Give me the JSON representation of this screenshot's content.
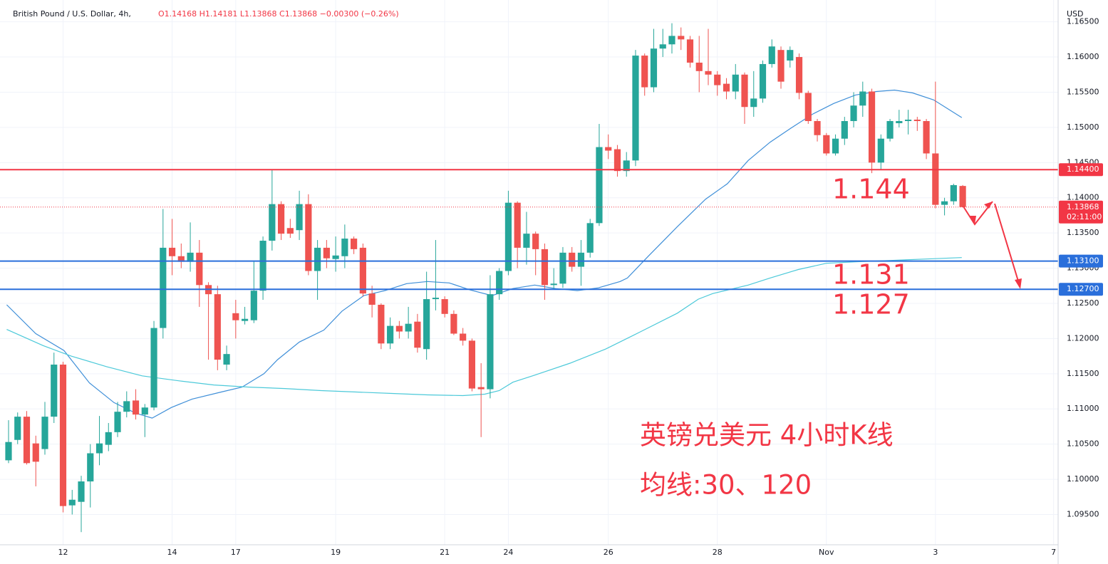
{
  "chart_data": {
    "type": "candlestick",
    "title": "British Pound / U.S. Dollar, 4h,",
    "legend_text": "O1.14168 H1.14181 L1.13868 C1.13868 −0.00300 (−0.26%)",
    "currency": "USD",
    "up_color": "#26a69a",
    "down_color": "#ef5350",
    "open": [
      1.1027,
      1.1056,
      1.1089,
      1.1051,
      1.1043,
      1.1089,
      1.1163,
      1.0963,
      1.0968,
      1.0997,
      1.1037,
      1.1049,
      1.1067,
      1.1096,
      1.1112,
      1.1092,
      1.1102,
      1.1215,
      1.1329,
      1.1317,
      1.1309,
      1.1322,
      1.1276,
      1.1263,
      1.1163,
      1.1236,
      1.1225,
      1.1226,
      1.1268,
      1.1339,
      1.1391,
      1.1357,
      1.1354,
      1.1391,
      1.1296,
      1.1329,
      1.1313,
      1.1317,
      1.1342,
      1.1329,
      1.1264,
      1.1248,
      1.1193,
      1.1218,
      1.121,
      1.1224,
      1.1185,
      1.1256,
      1.1256,
      1.1235,
      1.1207,
      1.1197,
      1.1131,
      1.1128,
      1.1263,
      1.1296,
      1.1393,
      1.1329,
      1.1349,
      1.1327,
      1.1276,
      1.1278,
      1.1322,
      1.1302,
      1.1322,
      1.1364,
      1.1472,
      1.1469,
      1.1438,
      1.1453,
      1.1602,
      1.1557,
      1.1612,
      1.1618,
      1.163,
      1.1625,
      1.1592,
      1.158,
      1.1575,
      1.1562,
      1.1551,
      1.1575,
      1.1529,
      1.1541,
      1.159,
      1.161,
      1.1595,
      1.16,
      1.1549,
      1.1509,
      1.1489,
      1.1463,
      1.1484,
      1.1509,
      1.1531,
      1.1551,
      1.145,
      1.1484,
      1.1506,
      1.1509,
      1.1511,
      1.1509,
      1.1463,
      1.139,
      1.1395,
      1.14168
    ],
    "high": [
      1.1084,
      1.1095,
      1.1097,
      1.1062,
      1.111,
      1.118,
      1.1167,
      1.0985,
      1.1005,
      1.105,
      1.109,
      1.108,
      1.111,
      1.1125,
      1.1128,
      1.1107,
      1.1225,
      1.1384,
      1.137,
      1.1335,
      1.1365,
      1.134,
      1.128,
      1.1275,
      1.119,
      1.1255,
      1.1245,
      1.131,
      1.1345,
      1.144,
      1.1395,
      1.137,
      1.141,
      1.1405,
      1.134,
      1.134,
      1.1345,
      1.1362,
      1.1345,
      1.1335,
      1.1275,
      1.125,
      1.123,
      1.1225,
      1.1245,
      1.1235,
      1.1295,
      1.134,
      1.126,
      1.124,
      1.1215,
      1.12,
      1.1165,
      1.129,
      1.13,
      1.141,
      1.1395,
      1.138,
      1.1352,
      1.1335,
      1.13,
      1.133,
      1.133,
      1.134,
      1.137,
      1.1505,
      1.149,
      1.1475,
      1.1465,
      1.161,
      1.1605,
      1.164,
      1.164,
      1.1648,
      1.1642,
      1.163,
      1.163,
      1.164,
      1.158,
      1.157,
      1.159,
      1.1578,
      1.158,
      1.1595,
      1.1625,
      1.1615,
      1.1615,
      1.1605,
      1.1552,
      1.1512,
      1.1492,
      1.149,
      1.1515,
      1.155,
      1.1565,
      1.1555,
      1.149,
      1.1512,
      1.1525,
      1.1525,
      1.1515,
      1.1512,
      1.1565,
      1.14,
      1.142,
      1.14181
    ],
    "low": [
      1.1023,
      1.105,
      1.1021,
      1.099,
      1.1035,
      1.108,
      1.0953,
      1.095,
      1.0925,
      1.096,
      1.102,
      1.104,
      1.106,
      1.1088,
      1.1085,
      1.106,
      1.1098,
      1.12,
      1.129,
      1.13,
      1.1295,
      1.1245,
      1.117,
      1.1155,
      1.1155,
      1.12,
      1.122,
      1.1222,
      1.1255,
      1.1325,
      1.134,
      1.1343,
      1.134,
      1.129,
      1.1255,
      1.13,
      1.1295,
      1.13,
      1.132,
      1.126,
      1.123,
      1.1185,
      1.1185,
      1.12,
      1.12,
      1.118,
      1.117,
      1.124,
      1.123,
      1.1205,
      1.119,
      1.1125,
      1.106,
      1.1115,
      1.1255,
      1.129,
      1.13,
      1.1305,
      1.129,
      1.1255,
      1.127,
      1.1272,
      1.1295,
      1.1275,
      1.1315,
      1.136,
      1.1455,
      1.143,
      1.143,
      1.1445,
      1.1545,
      1.155,
      1.16,
      1.1605,
      1.161,
      1.1585,
      1.155,
      1.156,
      1.1545,
      1.154,
      1.154,
      1.1505,
      1.1515,
      1.1535,
      1.1585,
      1.1555,
      1.1585,
      1.154,
      1.1505,
      1.148,
      1.146,
      1.146,
      1.1475,
      1.15,
      1.1515,
      1.1435,
      1.144,
      1.148,
      1.15,
      1.149,
      1.1495,
      1.1455,
      1.1385,
      1.1375,
      1.139,
      1.13868
    ],
    "close": [
      1.1053,
      1.1089,
      1.1023,
      1.1025,
      1.1089,
      1.1163,
      1.0962,
      1.0971,
      1.0997,
      1.1037,
      1.1051,
      1.1067,
      1.1096,
      1.1111,
      1.1092,
      1.1102,
      1.1215,
      1.1329,
      1.1317,
      1.1309,
      1.1322,
      1.1276,
      1.1263,
      1.117,
      1.1178,
      1.1226,
      1.1228,
      1.1268,
      1.1339,
      1.1391,
      1.1349,
      1.1349,
      1.1391,
      1.1296,
      1.1329,
      1.1314,
      1.1318,
      1.1342,
      1.1327,
      1.1264,
      1.1248,
      1.1193,
      1.1218,
      1.121,
      1.1221,
      1.1187,
      1.1256,
      1.1258,
      1.1235,
      1.1207,
      1.1197,
      1.1129,
      1.1128,
      1.1263,
      1.1296,
      1.1393,
      1.1329,
      1.1349,
      1.1327,
      1.1276,
      1.1278,
      1.1322,
      1.1302,
      1.1322,
      1.1364,
      1.1472,
      1.1467,
      1.1438,
      1.1453,
      1.1602,
      1.1557,
      1.1612,
      1.1618,
      1.163,
      1.1625,
      1.1592,
      1.158,
      1.1575,
      1.156,
      1.1551,
      1.1575,
      1.1529,
      1.1541,
      1.159,
      1.1615,
      1.1565,
      1.161,
      1.1549,
      1.1509,
      1.1489,
      1.1463,
      1.1484,
      1.1509,
      1.1531,
      1.1551,
      1.145,
      1.1484,
      1.1509,
      1.1509,
      1.1511,
      1.1509,
      1.1463,
      1.139,
      1.1395,
      1.1418,
      1.13868
    ],
    "series": [
      {
        "color": "#3f8fd8",
        "x": [
          -0.2,
          3.0,
          6.1,
          8.9,
          11.6,
          14.0,
          15.8,
          17.9,
          20.2,
          23.4,
          25.7,
          28.1,
          29.6,
          32.0,
          34.7,
          36.7,
          39.1,
          41.4,
          43.8,
          46.1,
          48.5,
          50.8,
          53.2,
          55.5,
          57.9,
          60.2,
          62.6,
          64.9,
          67.3,
          68.1,
          70.4,
          73.6,
          76.7,
          79.1,
          81.4,
          83.8,
          86.1,
          88.5,
          90.8,
          93.2,
          95.5,
          97.5,
          99.5,
          101.8,
          104.9
        ],
        "values": [
          1.1248,
          1.1207,
          1.1183,
          1.1137,
          1.1109,
          1.1094,
          1.1087,
          1.1102,
          1.1114,
          1.1124,
          1.1131,
          1.115,
          1.117,
          1.1195,
          1.1212,
          1.1239,
          1.1261,
          1.1268,
          1.1278,
          1.1281,
          1.1279,
          1.1269,
          1.1261,
          1.1271,
          1.1276,
          1.1271,
          1.1268,
          1.1272,
          1.1281,
          1.1286,
          1.1317,
          1.1359,
          1.1398,
          1.142,
          1.1453,
          1.1479,
          1.1499,
          1.1519,
          1.1534,
          1.1546,
          1.1551,
          1.1553,
          1.1549,
          1.1539,
          1.1514
        ]
      },
      {
        "color": "#4cc9d9",
        "x": [
          -0.2,
          3.8,
          6.9,
          10.8,
          14.7,
          18.7,
          22.6,
          26.5,
          30.4,
          34.4,
          38.3,
          42.2,
          46.1,
          50.0,
          52.4,
          54.0,
          55.5,
          57.9,
          61.8,
          65.7,
          69.6,
          73.6,
          75.9,
          77.5,
          81.4,
          83.8,
          86.9,
          90.0,
          93.2,
          97.1,
          101.0,
          104.9
        ],
        "values": [
          1.1213,
          1.119,
          1.1175,
          1.116,
          1.1147,
          1.114,
          1.1134,
          1.1131,
          1.1129,
          1.1126,
          1.1124,
          1.1122,
          1.112,
          1.1119,
          1.1121,
          1.1126,
          1.1138,
          1.1148,
          1.1165,
          1.1185,
          1.121,
          1.1236,
          1.1256,
          1.1264,
          1.1276,
          1.1286,
          1.1298,
          1.1307,
          1.1309,
          1.1311,
          1.1313,
          1.1315
        ]
      }
    ],
    "hlines": [
      {
        "value": 1.144,
        "label": "1.14400",
        "color": "#f23645"
      },
      {
        "value": 1.131,
        "label": "1.13100",
        "color": "#2a6fdb"
      },
      {
        "value": 1.127,
        "label": "1.12700",
        "color": "#2a6fdb"
      }
    ],
    "last_price": {
      "value": 1.13868,
      "countdown": "02:11:00",
      "color": "#f23645"
    },
    "annotations": [
      "1.144",
      "1.131",
      "1.127",
      "英镑兑美元 4小时K线",
      "均线:30、120"
    ],
    "ylim": [
      1.0907,
      1.1681
    ],
    "yticks": [
      {
        "value": 1.095,
        "label": "1.09500"
      },
      {
        "value": 1.1,
        "label": "1.10000"
      },
      {
        "value": 1.105,
        "label": "1.10500"
      },
      {
        "value": 1.11,
        "label": "1.11000"
      },
      {
        "value": 1.115,
        "label": "1.11500"
      },
      {
        "value": 1.12,
        "label": "1.12000"
      },
      {
        "value": 1.125,
        "label": "1.12500"
      },
      {
        "value": 1.13,
        "label": "1.13000"
      },
      {
        "value": 1.135,
        "label": "1.13500"
      },
      {
        "value": 1.14,
        "label": "1.14000"
      },
      {
        "value": 1.145,
        "label": "1.14500"
      },
      {
        "value": 1.15,
        "label": "1.15000"
      },
      {
        "value": 1.155,
        "label": "1.15500"
      },
      {
        "value": 1.16,
        "label": "1.16000"
      },
      {
        "value": 1.165,
        "label": "1.16500"
      }
    ],
    "xlim": [
      -0.94,
      115.5
    ],
    "xticks": [
      {
        "value": 6,
        "label": "12"
      },
      {
        "value": 18,
        "label": "14"
      },
      {
        "value": 25,
        "label": "17"
      },
      {
        "value": 36,
        "label": "19"
      },
      {
        "value": 48,
        "label": "21"
      },
      {
        "value": 55,
        "label": "24"
      },
      {
        "value": 66,
        "label": "26"
      },
      {
        "value": 78,
        "label": "28"
      },
      {
        "value": 90,
        "label": "Nov"
      },
      {
        "value": 102,
        "label": "3"
      },
      {
        "value": 115,
        "label": "7"
      }
    ],
    "grid": true
  }
}
